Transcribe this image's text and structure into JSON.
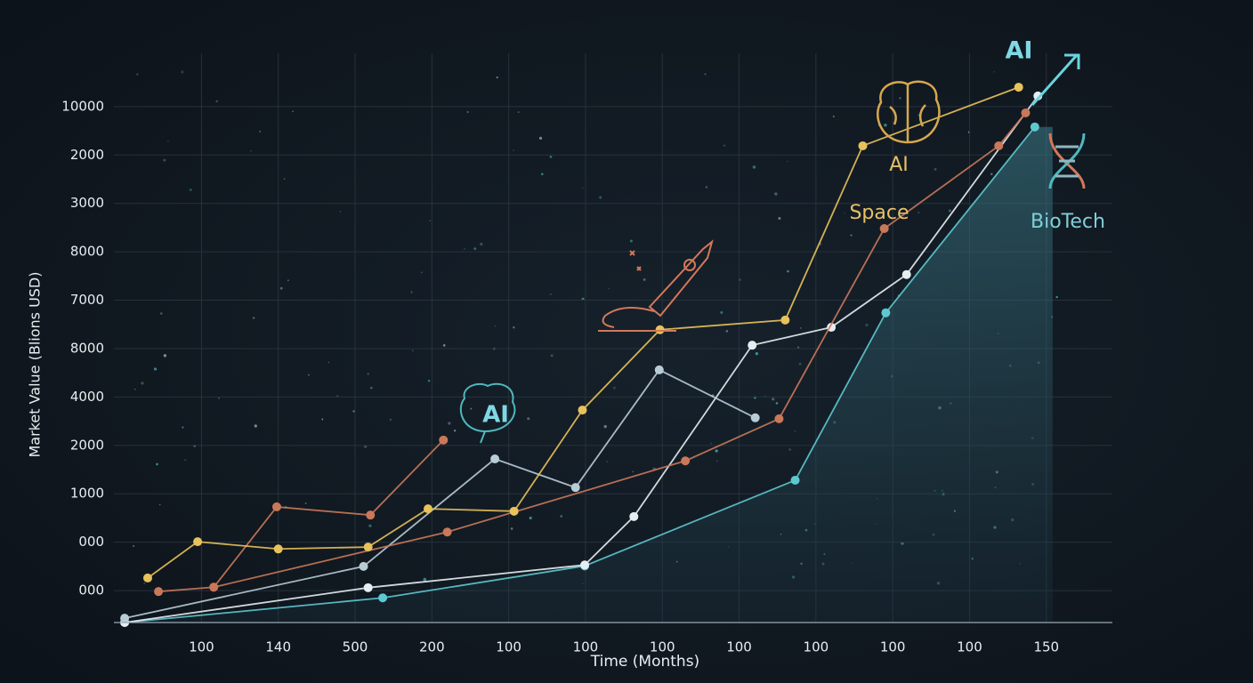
{
  "chart_data": {
    "type": "line",
    "ylabel": "Market Value (Blions USD)",
    "xlabel": "Time (Months)",
    "xlim": [
      -0.14,
      12.86
    ],
    "ylim": [
      0.34,
      12.1
    ],
    "xticks": [
      {
        "value": 1,
        "label": "100"
      },
      {
        "value": 2,
        "label": "140"
      },
      {
        "value": 3,
        "label": "500"
      },
      {
        "value": 4,
        "label": "200"
      },
      {
        "value": 5,
        "label": "100"
      },
      {
        "value": 6,
        "label": "100"
      },
      {
        "value": 7,
        "label": "100"
      },
      {
        "value": 8,
        "label": "100"
      },
      {
        "value": 9,
        "label": "100"
      },
      {
        "value": 10,
        "label": "100"
      },
      {
        "value": 11,
        "label": "100"
      },
      {
        "value": 12,
        "label": "150"
      }
    ],
    "yticks": [
      {
        "value": 1,
        "label": "000"
      },
      {
        "value": 2,
        "label": "000"
      },
      {
        "value": 3,
        "label": "1000"
      },
      {
        "value": 4,
        "label": "2000"
      },
      {
        "value": 5,
        "label": "4000"
      },
      {
        "value": 6,
        "label": "8000"
      },
      {
        "value": 7,
        "label": "7000"
      },
      {
        "value": 8,
        "label": "8000"
      },
      {
        "value": 9,
        "label": "3000"
      },
      {
        "value": 10,
        "label": "2000"
      },
      {
        "value": 11,
        "label": "10000"
      }
    ],
    "grid": true,
    "annotations": [
      "AI",
      "AI",
      "Space",
      "BioTech",
      "AI"
    ],
    "series": [
      {
        "color": "#5ec8cf",
        "x": [
          0.0,
          3.36,
          5.99,
          8.73,
          9.91,
          11.85
        ],
        "values": [
          0.34,
          0.85,
          1.51,
          3.28,
          6.74,
          10.58
        ]
      },
      {
        "color": "#e6eef2",
        "x": [
          0.0,
          3.17,
          5.99,
          6.63,
          8.17,
          9.2,
          10.18,
          11.89
        ],
        "values": [
          0.34,
          1.06,
          1.53,
          2.53,
          6.07,
          6.44,
          7.53,
          11.22
        ]
      },
      {
        "color": "#b8ccd6",
        "x": [
          0.0,
          3.11,
          4.82,
          5.87,
          6.96,
          8.21
        ],
        "values": [
          0.43,
          1.5,
          3.72,
          3.13,
          5.56,
          4.57
        ]
      },
      {
        "color": "#c9785a",
        "x": [
          1.16,
          4.2,
          7.3,
          8.52,
          9.89,
          11.38,
          11.73
        ],
        "values": [
          1.07,
          2.21,
          3.68,
          4.55,
          8.48,
          10.19,
          10.87
        ]
      },
      {
        "color": "#c9785a",
        "x": [
          0.44,
          1.16,
          1.98,
          3.2,
          4.15
        ],
        "values": [
          0.98,
          1.07,
          2.73,
          2.56,
          4.11
        ]
      },
      {
        "color": "#e8c25a",
        "x": [
          0.3,
          0.95,
          2.0,
          3.17,
          3.95,
          5.07,
          5.96,
          6.97,
          8.6,
          9.61,
          11.64
        ],
        "values": [
          1.26,
          2.01,
          1.86,
          1.9,
          2.69,
          2.64,
          4.73,
          6.39,
          6.59,
          10.19,
          11.4
        ]
      }
    ]
  }
}
